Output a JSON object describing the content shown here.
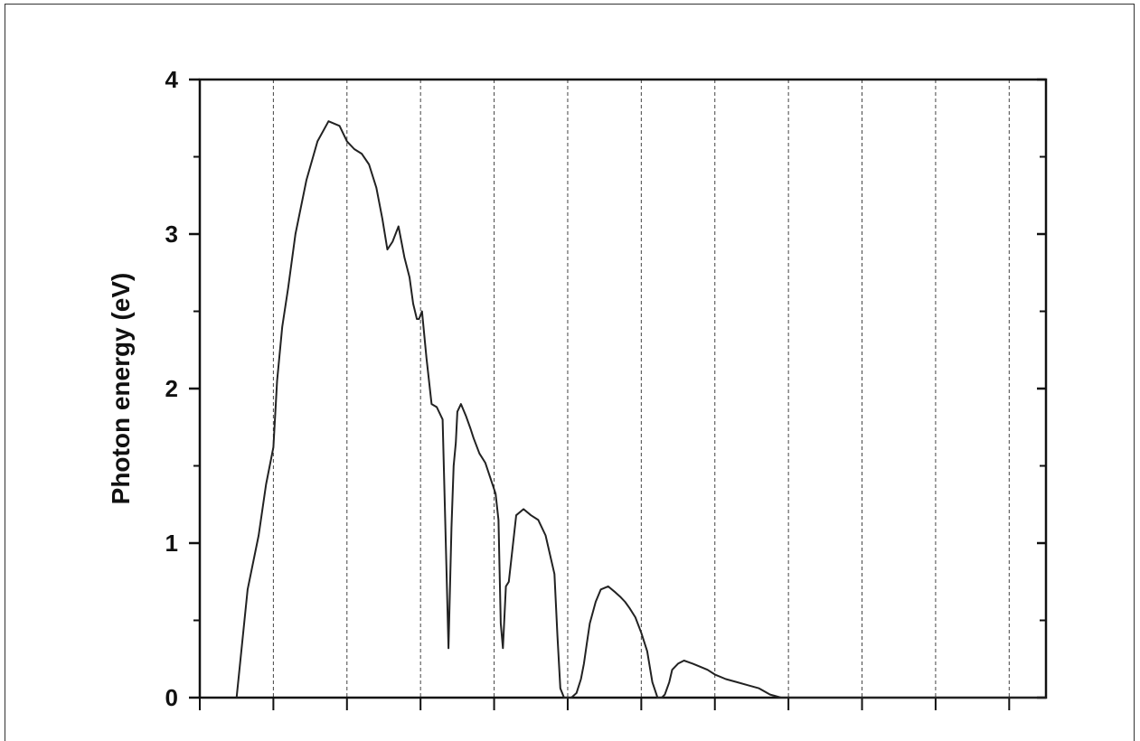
{
  "chart_data": {
    "type": "line",
    "title": "",
    "xlabel": "",
    "ylabel": "Photon energy (eV)",
    "ylim": [
      0,
      4
    ],
    "yticks": [
      "0",
      "1",
      "2",
      "3",
      "4"
    ],
    "grid": "vertical-dashed",
    "xlim": [
      0,
      11.5
    ],
    "series": [
      {
        "x": [
          0.5,
          0.65,
          0.8,
          0.9,
          1.0,
          1.05,
          1.12,
          1.2,
          1.3,
          1.45,
          1.6,
          1.75,
          1.9,
          2.0,
          2.1,
          2.2,
          2.3,
          2.4,
          2.48,
          2.55,
          2.62,
          2.7,
          2.78,
          2.85,
          2.9,
          2.95,
          2.98,
          3.02,
          3.08,
          3.15,
          3.22,
          3.3,
          3.38,
          3.42,
          3.45,
          3.48,
          3.5,
          3.55,
          3.62,
          3.68,
          3.72,
          3.8,
          3.88,
          3.95,
          4.02,
          4.06,
          4.09,
          4.12,
          4.16,
          4.2,
          4.3,
          4.4,
          4.5,
          4.6,
          4.7,
          4.82,
          4.86,
          4.9,
          4.95,
          5.05,
          5.12,
          5.18,
          5.22,
          5.26,
          5.3,
          5.38,
          5.45,
          5.55,
          5.65,
          5.72,
          5.78,
          5.84,
          5.92,
          6.0,
          6.08,
          6.15,
          6.22,
          6.28,
          6.32,
          6.38,
          6.42,
          6.5,
          6.58,
          6.64,
          6.7,
          6.8,
          6.9,
          7.0,
          7.15,
          7.3,
          7.45,
          7.6,
          7.75,
          7.9,
          8.02,
          8.1,
          8.2,
          8.3,
          8.4,
          8.5,
          8.6,
          8.7,
          8.8,
          8.9,
          9.0,
          9.1,
          9.3,
          9.5,
          9.7,
          9.9,
          10.1,
          10.3,
          10.5,
          10.7,
          10.9,
          11.1,
          11.2,
          11.3,
          11.4,
          11.5
        ],
        "y": [
          0.0,
          0.7,
          1.05,
          1.38,
          1.62,
          2.05,
          2.4,
          2.65,
          3.0,
          3.35,
          3.6,
          3.73,
          3.7,
          3.6,
          3.55,
          3.52,
          3.45,
          3.3,
          3.1,
          2.9,
          2.95,
          3.05,
          2.85,
          2.72,
          2.55,
          2.45,
          2.45,
          2.5,
          2.2,
          1.9,
          1.88,
          1.8,
          0.32,
          1.1,
          1.5,
          1.65,
          1.85,
          1.9,
          1.82,
          1.74,
          1.68,
          1.58,
          1.52,
          1.42,
          1.32,
          1.15,
          0.48,
          0.32,
          0.72,
          0.75,
          1.18,
          1.22,
          1.18,
          1.15,
          1.05,
          0.8,
          0.4,
          0.06,
          0.0,
          0.0,
          0.03,
          0.12,
          0.22,
          0.35,
          0.48,
          0.62,
          0.7,
          0.72,
          0.68,
          0.65,
          0.62,
          0.58,
          0.52,
          0.42,
          0.3,
          0.1,
          0.0,
          0.0,
          0.02,
          0.1,
          0.18,
          0.22,
          0.24,
          0.23,
          0.22,
          0.2,
          0.18,
          0.15,
          0.12,
          0.1,
          0.08,
          0.06,
          0.02,
          0.0,
          0.0,
          0.0,
          0.0,
          0.0,
          0.0,
          0.0,
          0.0,
          0.0,
          0.0,
          0.0,
          0.0,
          0.0,
          0.0,
          0.0,
          0.0,
          0.0,
          0.0,
          0.0,
          0.0,
          0.0,
          0.0,
          0.0,
          0.0,
          0.0,
          0.0,
          0.0
        ],
        "color": "#222222"
      }
    ]
  }
}
